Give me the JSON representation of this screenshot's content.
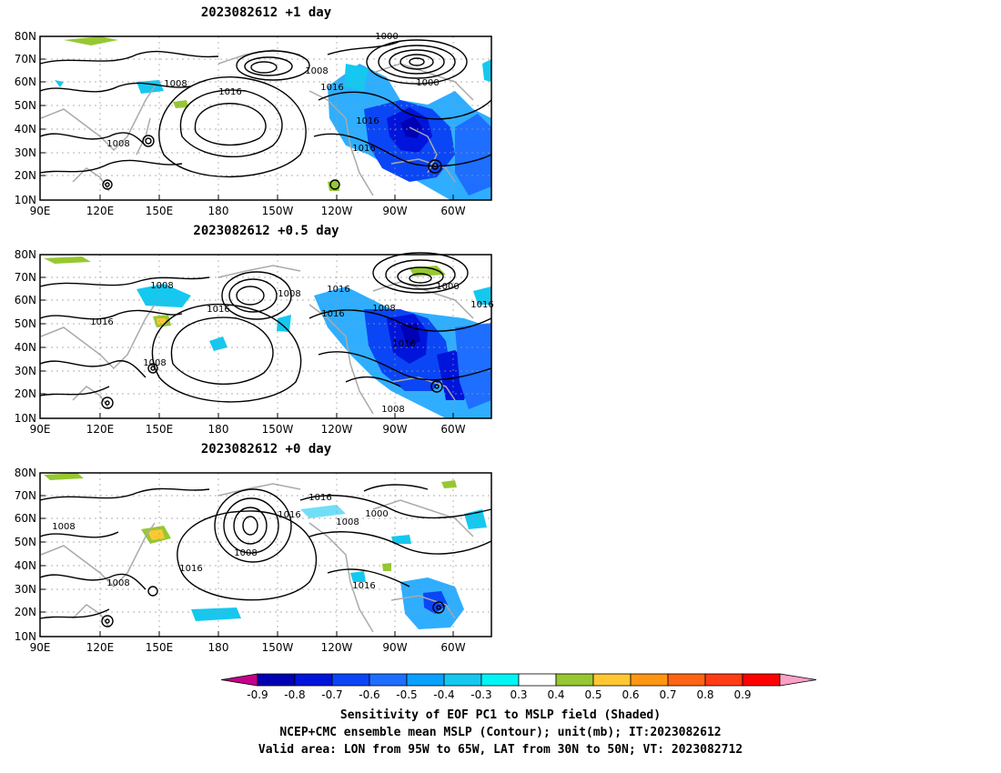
{
  "panels": [
    {
      "title": "2023082612 +1 day"
    },
    {
      "title": "2023082612 +0.5 day"
    },
    {
      "title": "2023082612 +0 day"
    }
  ],
  "axes": {
    "lat_labels": [
      "80N",
      "70N",
      "60N",
      "50N",
      "40N",
      "30N",
      "20N",
      "10N"
    ],
    "lon_labels": [
      "90E",
      "120E",
      "150E",
      "180",
      "150W",
      "120W",
      "90W",
      "60W"
    ]
  },
  "contour_labels": {
    "p0": [
      "1000",
      "1008",
      "1008",
      "1016",
      "1016",
      "1016",
      "1016",
      "1008",
      "1000"
    ],
    "p1": [
      "1008",
      "1016",
      "1016",
      "1008",
      "1008",
      "1016",
      "1016",
      "1000",
      "1016",
      "1008",
      "1016",
      "1008"
    ],
    "p2": [
      "1008",
      "1016",
      "1008",
      "1008",
      "1016",
      "1016",
      "1008",
      "1000",
      "1016"
    ]
  },
  "colorbar": {
    "tick_labels": [
      "-0.9",
      "-0.8",
      "-0.7",
      "-0.6",
      "-0.5",
      "-0.4",
      "-0.3",
      "0.3",
      "0.4",
      "0.5",
      "0.6",
      "0.7",
      "0.8",
      "0.9"
    ],
    "colors": [
      "#c6008c",
      "#0000b4",
      "#0014dc",
      "#0a46f5",
      "#1e6eff",
      "#0aa0ff",
      "#14c8f0",
      "#00f5f5",
      "#ffffff",
      "#96c832",
      "#ffc832",
      "#ff9614",
      "#ff6414",
      "#ff3c14",
      "#ff0000",
      "#ffa0c8"
    ]
  },
  "caption": {
    "line1": "Sensitivity of EOF PC1 to MSLP field (Shaded)",
    "line2": "NCEP+CMC ensemble mean MSLP (Contour); unit(mb); IT:2023082612",
    "line3": "Valid area: LON from 95W to 65W, LAT from 30N to 50N; VT: 2023082712"
  }
}
